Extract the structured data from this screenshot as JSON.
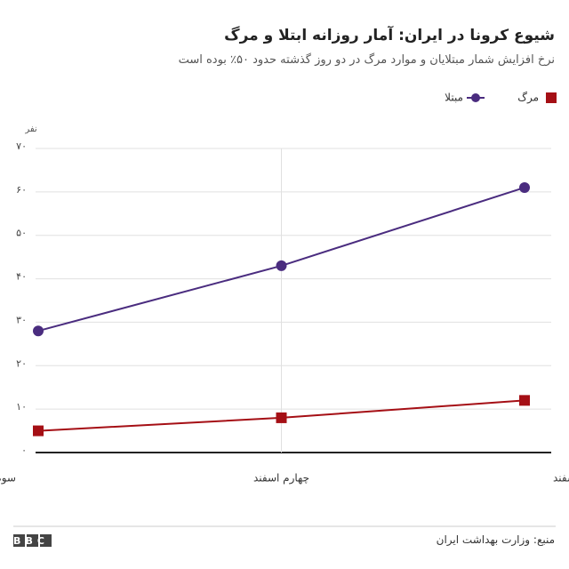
{
  "chart_data": {
    "type": "line",
    "title": "شیوع کرونا در ایران: آمار روزانه ابتلا و مرگ",
    "subtitle": "نرخ افزایش شمار مبتلایان و موارد مرگ در دو روز گذشته حدود ۵۰٪ بوده است",
    "y_label": "نفر",
    "categories": [
      "سوم اسفند",
      "چهارم اسفند",
      "پنجم اسفند"
    ],
    "series": [
      {
        "name": "مرگ",
        "color": "#a50f15",
        "marker": "square",
        "values": [
          5,
          8,
          12
        ]
      },
      {
        "name": "مبتلا",
        "color": "#4a2c7f",
        "marker": "circle",
        "values": [
          28,
          43,
          61
        ]
      }
    ],
    "ylim": [
      0,
      70
    ],
    "yticks": [
      {
        "value": 0,
        "label": "۰"
      },
      {
        "value": 10,
        "label": "۱۰"
      },
      {
        "value": 20,
        "label": "۲۰"
      },
      {
        "value": 30,
        "label": "۳۰"
      },
      {
        "value": 40,
        "label": "۴۰"
      },
      {
        "value": 50,
        "label": "۵۰"
      },
      {
        "value": 60,
        "label": "۶۰"
      },
      {
        "value": 70,
        "label": "۷۰"
      }
    ],
    "grid": true,
    "source": "منبع: وزارت بهداشت ایران",
    "logo": "BBC"
  }
}
